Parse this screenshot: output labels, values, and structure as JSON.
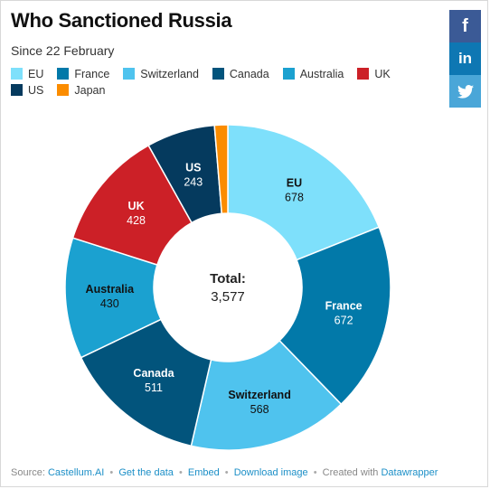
{
  "chart_data": {
    "type": "donut",
    "title": "Who Sanctioned Russia",
    "subtitle": "Since 22 February",
    "center_label": "Total:",
    "center_value": "3,577",
    "legend_placement": "top-left",
    "categories": [
      "EU",
      "France",
      "Switzerland",
      "Canada",
      "Australia",
      "UK",
      "US",
      "Japan"
    ],
    "values": [
      678,
      672,
      568,
      511,
      430,
      428,
      243,
      47
    ],
    "value_labels": [
      "678",
      "672",
      "568",
      "511",
      "430",
      "428",
      "243",
      ""
    ],
    "colors": [
      "#7ee0fb",
      "#0279a9",
      "#4fc3ee",
      "#02547c",
      "#1ba1d0",
      "#cc2027",
      "#053a5e",
      "#fb8c00"
    ],
    "label_colors": [
      "#111111",
      "#ffffff",
      "#111111",
      "#ffffff",
      "#111111",
      "#ffffff",
      "#ffffff",
      "#111111"
    ]
  },
  "legend": {
    "items": [
      "EU",
      "France",
      "Switzerland",
      "Canada",
      "Australia",
      "UK",
      "US",
      "Japan"
    ]
  },
  "share": {
    "facebook_glyph": "f",
    "linkedin_glyph": "in",
    "icons": [
      "facebook-icon",
      "linkedin-icon",
      "twitter-icon"
    ]
  },
  "footer": {
    "source_prefix": "Source:",
    "source_link": "Castellum.AI",
    "get_data": "Get the data",
    "embed": "Embed",
    "download": "Download image",
    "created_with": "Created with",
    "tool": "Datawrapper",
    "separator": "•"
  }
}
